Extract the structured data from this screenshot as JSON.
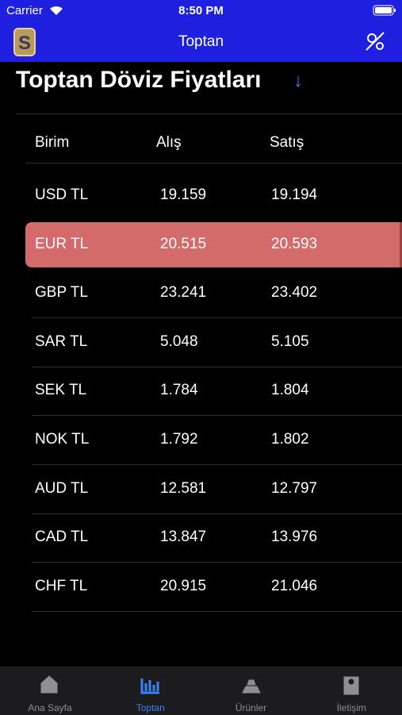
{
  "status_bar": {
    "carrier": "Carrier",
    "time": "8:50 PM"
  },
  "nav_bar": {
    "title": "Toptan"
  },
  "heading": "Toptan Döviz Fiyatları",
  "table": {
    "columns": [
      "Birim",
      "Alış",
      "Satış"
    ],
    "rows": [
      [
        "USD TL",
        "19.159",
        "19.194"
      ],
      [
        "EUR TL",
        "20.515",
        "20.593"
      ],
      [
        "GBP TL",
        "23.241",
        "23.402"
      ],
      [
        "SAR TL",
        "5.048",
        "5.105"
      ],
      [
        "SEK TL",
        "1.784",
        "1.804"
      ],
      [
        "NOK TL",
        "1.792",
        "1.802"
      ],
      [
        "AUD TL",
        "12.581",
        "12.797"
      ],
      [
        "CAD TL",
        "13.847",
        "13.976"
      ],
      [
        "CHF TL",
        "20.915",
        "21.046"
      ]
    ],
    "highlighted_row": 1
  },
  "tab_bar": {
    "tabs": [
      "Ana Sayfa",
      "Toptan",
      "Ürünler",
      "İletişim"
    ],
    "selected": 1
  }
}
